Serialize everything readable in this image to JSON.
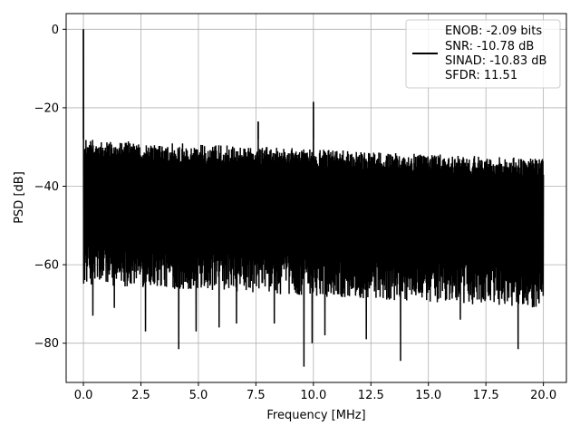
{
  "chart_data": {
    "type": "line",
    "title": "",
    "xlabel": "Frequency [MHz]",
    "ylabel": "PSD [dB]",
    "xlim": [
      -0.75,
      21.0
    ],
    "ylim": [
      -90,
      4
    ],
    "xticks": [
      0.0,
      2.5,
      5.0,
      7.5,
      10.0,
      12.5,
      15.0,
      17.5,
      20.0
    ],
    "xtick_labels": [
      "0.0",
      "2.5",
      "5.0",
      "7.5",
      "10.0",
      "12.5",
      "15.0",
      "17.5",
      "20.0"
    ],
    "yticks": [
      0,
      -20,
      -40,
      -60,
      -80
    ],
    "ytick_labels": [
      "0",
      "−20",
      "−40",
      "−60",
      "−80"
    ],
    "grid": true,
    "legend_position": "top-right",
    "legend_lines": [
      "ENOB: -2.09 bits",
      "SNR: -10.78 dB",
      "SINAD: -10.83 dB",
      "SFDR: 11.51"
    ],
    "line_color": "#000000",
    "noise_floor": {
      "x_range": [
        0.0,
        20.0
      ],
      "upper_envelope_start": -28,
      "upper_envelope_end": -33,
      "lower_typical_start": -62,
      "lower_typical_end": -68
    },
    "peaks": [
      {
        "x": 0.0,
        "y": 0.0
      },
      {
        "x": 7.6,
        "y": -23.5
      },
      {
        "x": 10.0,
        "y": -18.5
      }
    ],
    "dips": [
      {
        "x": 0.4,
        "y": -73
      },
      {
        "x": 1.35,
        "y": -71
      },
      {
        "x": 2.7,
        "y": -77
      },
      {
        "x": 4.15,
        "y": -81.5
      },
      {
        "x": 4.9,
        "y": -77
      },
      {
        "x": 5.9,
        "y": -76
      },
      {
        "x": 6.65,
        "y": -75
      },
      {
        "x": 8.3,
        "y": -75
      },
      {
        "x": 9.6,
        "y": -86
      },
      {
        "x": 9.95,
        "y": -80
      },
      {
        "x": 10.5,
        "y": -78
      },
      {
        "x": 12.3,
        "y": -79
      },
      {
        "x": 13.8,
        "y": -84.5
      },
      {
        "x": 16.4,
        "y": -74
      },
      {
        "x": 18.9,
        "y": -81.5
      }
    ]
  }
}
